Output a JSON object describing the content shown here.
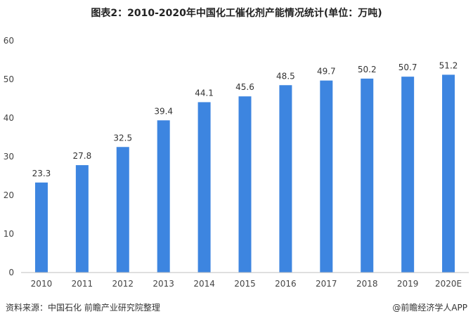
{
  "title": "图表2：2010-2020年中国化工催化剂产能情况统计(单位：万吨)",
  "footer": {
    "source": "资料来源：中国石化 前瞻产业研究院整理",
    "brand": "@前瞻经济学人APP"
  },
  "colors": {
    "bar": "#3d85e0",
    "axis": "#bfbfbf"
  },
  "chart_data": {
    "type": "bar",
    "categories": [
      "2010",
      "2011",
      "2012",
      "2013",
      "2014",
      "2015",
      "2016",
      "2017",
      "2018",
      "2019",
      "2020E"
    ],
    "values": [
      23.3,
      27.8,
      32.5,
      39.4,
      44.1,
      45.6,
      48.5,
      49.7,
      50.2,
      50.7,
      51.2
    ],
    "value_labels": [
      "23.3",
      "27.8",
      "32.5",
      "39.4",
      "44.1",
      "45.6",
      "48.5",
      "49.7",
      "50.2",
      "50.7",
      "51.2"
    ],
    "yticks": [
      "0",
      "10",
      "20",
      "30",
      "40",
      "50",
      "60"
    ],
    "ylim": [
      0,
      60
    ],
    "grid": false,
    "legend": "none"
  }
}
